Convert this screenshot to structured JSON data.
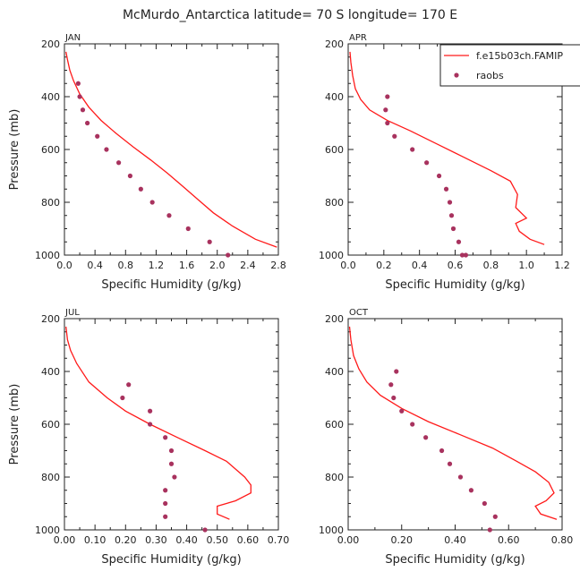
{
  "figure_title": "McMurdo_Antarctica  latitude= 70 S longitude= 170 E",
  "legend": {
    "model_label": "f.e15b03ch.FAMIP",
    "obs_label": "raobs"
  },
  "colors": {
    "model": "#ff1a1a",
    "obs": "#a8325e",
    "axis": "#222222"
  },
  "chart_data": [
    {
      "type": "line",
      "panel": "JAN",
      "xlabel": "Specific Humidity (g/kg)",
      "ylabel": "Pressure (mb)",
      "xlim": [
        0,
        2.8
      ],
      "ylim": [
        1000,
        200
      ],
      "xticks": [
        0,
        0.4,
        0.8,
        1.2,
        1.6,
        2.0,
        2.4,
        2.8
      ],
      "xtick_labels": [
        "0.0",
        "0.4",
        "0.8",
        "1.2",
        "1.6",
        "2.0",
        "2.4",
        "2.8"
      ],
      "yticks": [
        200,
        400,
        600,
        800,
        1000
      ],
      "ytick_labels": [
        "200",
        "400",
        "600",
        "800",
        "1000"
      ],
      "series": [
        {
          "name": "f.e15b03ch.FAMIP",
          "kind": "line",
          "x": [
            0.02,
            0.04,
            0.07,
            0.12,
            0.2,
            0.32,
            0.48,
            0.68,
            0.9,
            1.13,
            1.35,
            1.55,
            1.75,
            1.95,
            2.2,
            2.5,
            2.78
          ],
          "y": [
            230,
            260,
            300,
            340,
            390,
            440,
            490,
            540,
            590,
            640,
            690,
            740,
            790,
            840,
            890,
            940,
            970
          ]
        },
        {
          "name": "raobs",
          "kind": "scatter",
          "x": [
            0.18,
            0.2,
            0.24,
            0.3,
            0.43,
            0.55,
            0.71,
            0.86,
            1.0,
            1.15,
            1.37,
            1.62,
            1.9,
            2.14
          ],
          "y": [
            350,
            400,
            450,
            500,
            550,
            600,
            650,
            700,
            750,
            800,
            850,
            900,
            950,
            1000
          ]
        }
      ]
    },
    {
      "type": "line",
      "panel": "APR",
      "xlabel": "Specific Humidity (g/kg)",
      "ylabel": "Pressure (mb)",
      "xlim": [
        0,
        1.2
      ],
      "ylim": [
        1000,
        200
      ],
      "xticks": [
        0,
        0.2,
        0.4,
        0.6,
        0.8,
        1.0,
        1.2
      ],
      "xtick_labels": [
        "0.0",
        "0.2",
        "0.4",
        "0.6",
        "0.8",
        "1.0",
        "1.2"
      ],
      "yticks": [
        200,
        400,
        600,
        800,
        1000
      ],
      "ytick_labels": [
        "200",
        "400",
        "600",
        "800",
        "1000"
      ],
      "series": [
        {
          "name": "f.e15b03ch.FAMIP",
          "kind": "line",
          "x": [
            0.01,
            0.015,
            0.025,
            0.04,
            0.07,
            0.12,
            0.22,
            0.35,
            0.5,
            0.65,
            0.8,
            0.91,
            0.95,
            0.94,
            1.0,
            0.94,
            0.96,
            1.02,
            1.1
          ],
          "y": [
            230,
            270,
            320,
            370,
            410,
            450,
            490,
            530,
            580,
            630,
            680,
            720,
            770,
            820,
            860,
            880,
            910,
            940,
            960
          ]
        },
        {
          "name": "raobs",
          "kind": "scatter",
          "x": [
            0.22,
            0.21,
            0.22,
            0.26,
            0.36,
            0.44,
            0.51,
            0.55,
            0.57,
            0.58,
            0.59,
            0.62,
            0.64,
            0.66
          ],
          "y": [
            400,
            450,
            500,
            550,
            600,
            650,
            700,
            750,
            800,
            850,
            900,
            950,
            1000,
            1000
          ]
        }
      ]
    },
    {
      "type": "line",
      "panel": "JUL",
      "xlabel": "Specific Humidity (g/kg)",
      "ylabel": "Pressure (mb)",
      "xlim": [
        0,
        0.7
      ],
      "ylim": [
        1000,
        200
      ],
      "xticks": [
        0,
        0.1,
        0.2,
        0.3,
        0.4,
        0.5,
        0.6,
        0.7
      ],
      "xtick_labels": [
        "0.00",
        "0.10",
        "0.20",
        "0.30",
        "0.40",
        "0.50",
        "0.60",
        "0.70"
      ],
      "yticks": [
        200,
        400,
        600,
        800,
        1000
      ],
      "ytick_labels": [
        "200",
        "400",
        "600",
        "800",
        "1000"
      ],
      "series": [
        {
          "name": "f.e15b03ch.FAMIP",
          "kind": "line",
          "x": [
            0.005,
            0.01,
            0.02,
            0.04,
            0.08,
            0.14,
            0.2,
            0.28,
            0.37,
            0.46,
            0.53,
            0.56,
            0.59,
            0.61,
            0.61,
            0.56,
            0.5,
            0.5,
            0.54
          ],
          "y": [
            230,
            280,
            320,
            370,
            440,
            500,
            550,
            600,
            650,
            700,
            740,
            770,
            800,
            830,
            860,
            890,
            910,
            940,
            960
          ]
        },
        {
          "name": "raobs",
          "kind": "scatter",
          "x": [
            0.21,
            0.19,
            0.28,
            0.28,
            0.33,
            0.35,
            0.35,
            0.36,
            0.33,
            0.33,
            0.33,
            0.46
          ],
          "y": [
            450,
            500,
            550,
            600,
            650,
            700,
            750,
            800,
            850,
            900,
            950,
            1000
          ]
        }
      ]
    },
    {
      "type": "line",
      "panel": "OCT",
      "xlabel": "Specific Humidity (g/kg)",
      "ylabel": "Pressure (mb)",
      "xlim": [
        0,
        0.8
      ],
      "ylim": [
        1000,
        200
      ],
      "xticks": [
        0,
        0.2,
        0.4,
        0.6,
        0.8
      ],
      "xtick_labels": [
        "0.00",
        "0.20",
        "0.40",
        "0.60",
        "0.80"
      ],
      "yticks": [
        200,
        400,
        600,
        800,
        1000
      ],
      "ytick_labels": [
        "200",
        "400",
        "600",
        "800",
        "1000"
      ],
      "series": [
        {
          "name": "f.e15b03ch.FAMIP",
          "kind": "line",
          "x": [
            0.005,
            0.01,
            0.02,
            0.04,
            0.07,
            0.12,
            0.2,
            0.3,
            0.42,
            0.54,
            0.63,
            0.7,
            0.75,
            0.77,
            0.74,
            0.7,
            0.72,
            0.78
          ],
          "y": [
            230,
            280,
            340,
            390,
            440,
            490,
            540,
            590,
            640,
            690,
            740,
            780,
            820,
            860,
            890,
            910,
            940,
            960
          ]
        },
        {
          "name": "raobs",
          "kind": "scatter",
          "x": [
            0.18,
            0.16,
            0.17,
            0.2,
            0.24,
            0.29,
            0.35,
            0.38,
            0.42,
            0.46,
            0.51,
            0.55,
            0.53
          ],
          "y": [
            400,
            450,
            500,
            550,
            600,
            650,
            700,
            750,
            800,
            850,
            900,
            950,
            1000
          ]
        }
      ]
    }
  ]
}
